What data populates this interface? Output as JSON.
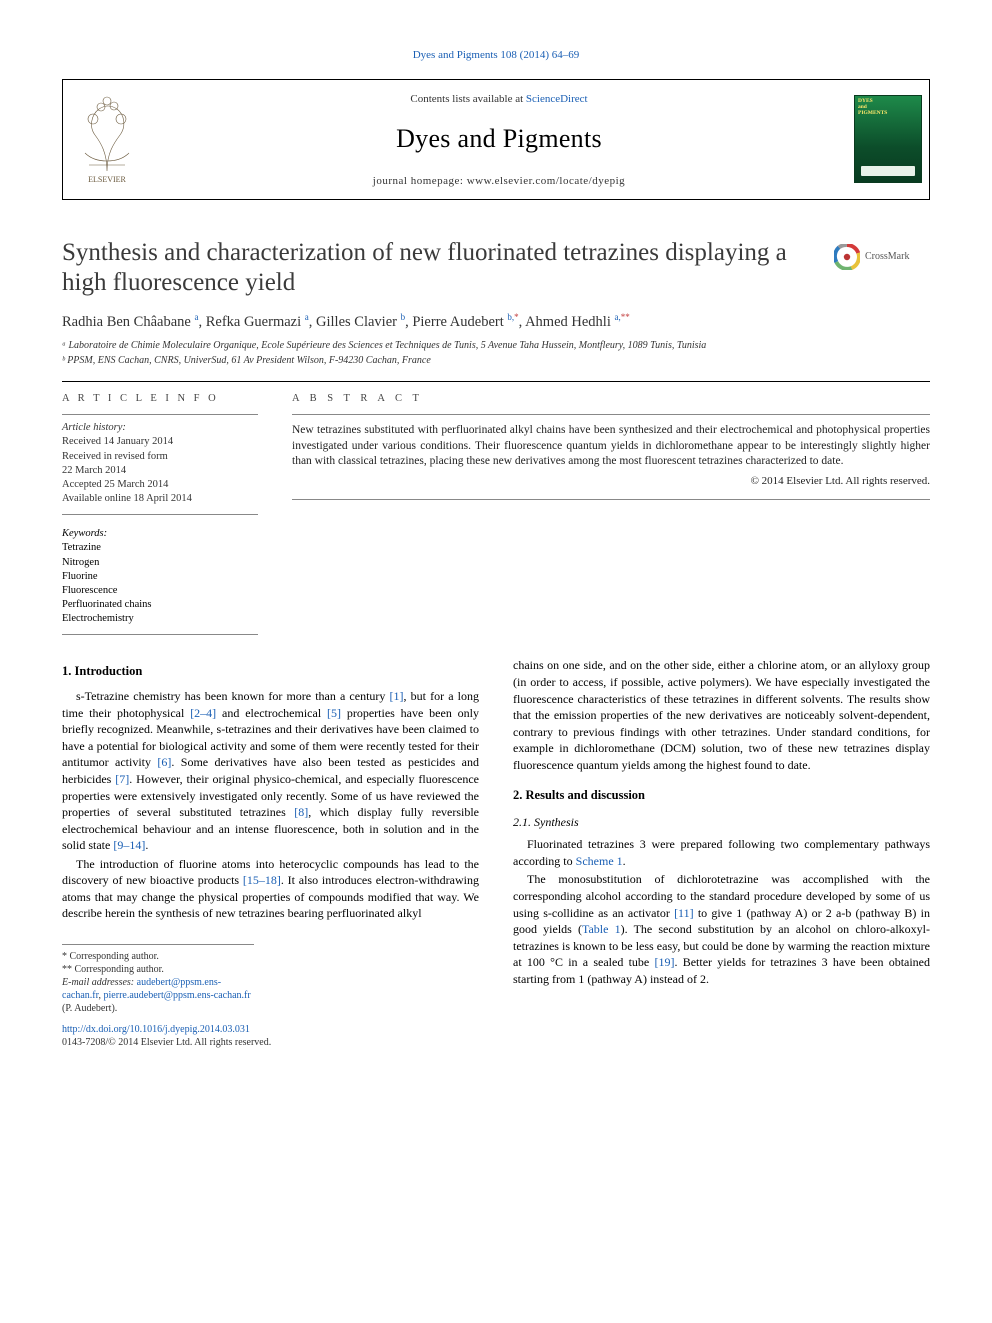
{
  "top_link": "Dyes and Pigments 108 (2014) 64–69",
  "header": {
    "contents_prefix": "Contents lists available at ",
    "contents_link": "ScienceDirect",
    "journal_name": "Dyes and Pigments",
    "homepage_label": "journal homepage: www.elsevier.com/locate/dyepig",
    "cover_title": "DYES\nand\nPIGMENTS"
  },
  "crossmark_label": "CrossMark",
  "title": "Synthesis and characterization of new fluorinated tetrazines displaying a high fluorescence yield",
  "authors_html": "Radhia Ben Châabane <sup>a</sup>, Refka Guermazi <sup>a</sup>, Gilles Clavier <sup>b</sup>, Pierre Audebert <sup>b,</sup><sup class='sup-red'>*</sup>, Ahmed Hedhli <sup>a,</sup><sup class='sup-red'>**</sup>",
  "affiliations": [
    "ᵃ Laboratoire de Chimie Moleculaire Organique, Ecole Supérieure des Sciences et Techniques de Tunis, 5 Avenue Taha Hussein, Montfleury, 1089 Tunis, Tunisia",
    "ᵇ PPSM, ENS Cachan, CNRS, UniverSud, 61 Av President Wilson, F-94230 Cachan, France"
  ],
  "article_info_head": "A R T I C L E  I N F O",
  "abstract_head": "A B S T R A C T",
  "history": {
    "head": "Article history:",
    "items": [
      "Received 14 January 2014",
      "Received in revised form",
      "22 March 2014",
      "Accepted 25 March 2014",
      "Available online 18 April 2014"
    ]
  },
  "keywords": {
    "head": "Keywords:",
    "items": [
      "Tetrazine",
      "Nitrogen",
      "Fluorine",
      "Fluorescence",
      "Perfluorinated chains",
      "Electrochemistry"
    ]
  },
  "abstract_text": "New tetrazines substituted with perfluorinated alkyl chains have been synthesized and their electrochemical and photophysical properties investigated under various conditions. Their fluorescence quantum yields in dichloromethane appear to be interestingly slightly higher than with classical tetrazines, placing these new derivatives among the most fluorescent tetrazines characterized to date.",
  "abstract_copyright": "© 2014 Elsevier Ltd. All rights reserved.",
  "sections": {
    "intro_head": "1. Introduction",
    "intro_p1_pre": "s-Tetrazine chemistry has been known for more than a century ",
    "intro_p1_ref1": "[1]",
    "intro_p1_mid1": ", but for a long time their photophysical ",
    "intro_p1_ref2": "[2–4]",
    "intro_p1_mid2": " and electrochemical ",
    "intro_p1_ref3": "[5]",
    "intro_p1_mid3": " properties have been only briefly recognized. Meanwhile, s-tetrazines and their derivatives have been claimed to have a potential for biological activity and some of them were recently tested for their antitumor activity ",
    "intro_p1_ref4": "[6]",
    "intro_p1_mid4": ". Some derivatives have also been tested as pesticides and herbicides ",
    "intro_p1_ref5": "[7]",
    "intro_p1_mid5": ". However, their original physico-chemical, and especially fluorescence properties were extensively investigated only recently. Some of us have reviewed the properties of several substituted tetrazines ",
    "intro_p1_ref6": "[8]",
    "intro_p1_mid6": ", which display fully reversible electrochemical behaviour and an intense fluorescence, both in solution and in the solid state ",
    "intro_p1_ref7": "[9–14]",
    "intro_p1_end": ".",
    "intro_p2_pre": "The introduction of fluorine atoms into heterocyclic compounds has lead to the discovery of new bioactive products ",
    "intro_p2_ref1": "[15–18]",
    "intro_p2_mid": ". It also introduces electron-withdrawing atoms that may change the physical properties of compounds modified that way. We describe herein the synthesis of new tetrazines bearing perfluorinated alkyl",
    "col2_p1": "chains on one side, and on the other side, either a chlorine atom, or an allyloxy group (in order to access, if possible, active polymers). We have especially investigated the fluorescence characteristics of these tetrazines in different solvents. The results show that the emission properties of the new derivatives are noticeably solvent-dependent, contrary to previous findings with other tetrazines. Under standard conditions, for example in dichloromethane (DCM) solution, two of these new tetrazines display fluorescence quantum yields among the highest found to date.",
    "results_head": "2. Results and discussion",
    "synth_head": "2.1. Synthesis",
    "synth_p1_pre": "Fluorinated tetrazines 3 were prepared following two complementary pathways according to ",
    "synth_p1_ref1": "Scheme 1",
    "synth_p1_end": ".",
    "synth_p2_pre": "The monosubstitution of dichlorotetrazine was accomplished with the corresponding alcohol according to the standard procedure developed by some of us using s-collidine as an activator ",
    "synth_p2_ref1": "[11]",
    "synth_p2_mid1": " to give 1 (pathway A) or 2 a-b (pathway B) in good yields (",
    "synth_p2_ref2": "Table 1",
    "synth_p2_mid2": "). The second substitution by an alcohol on chloro-alkoxyl-tetrazines is known to be less easy, but could be done by warming the reaction mixture at 100 °C in a sealed tube ",
    "synth_p2_ref3": "[19]",
    "synth_p2_end": ". Better yields for tetrazines 3 have been obtained starting from 1 (pathway A) instead of 2."
  },
  "footnotes": {
    "star1": "* Corresponding author.",
    "star2": "** Corresponding author.",
    "email_label": "E-mail addresses: ",
    "email1": "audebert@ppsm.ens-cachan.fr",
    "email_sep": ", ",
    "email2": "pierre.audebert@ppsm.ens-cachan.fr",
    "email_tail": " (P. Audebert).",
    "doi": "http://dx.doi.org/10.1016/j.dyepig.2014.03.031",
    "issn": "0143-7208/© 2014 Elsevier Ltd. All rights reserved."
  },
  "colors": {
    "link": "#1a5fb4",
    "text": "#000000",
    "muted": "#333333",
    "cover_green1": "#1e8a4a",
    "cover_green2": "#083b20",
    "cover_yellow": "#ffe86b",
    "crossmark_ring1": "#d43a3a",
    "crossmark_ring2": "#e8c23a",
    "crossmark_ring3": "#2e7bbf"
  },
  "typography": {
    "body_pt": 12,
    "title_pt": 25,
    "journal_pt": 26,
    "meta_pt": 10.5,
    "footnote_pt": 10
  }
}
